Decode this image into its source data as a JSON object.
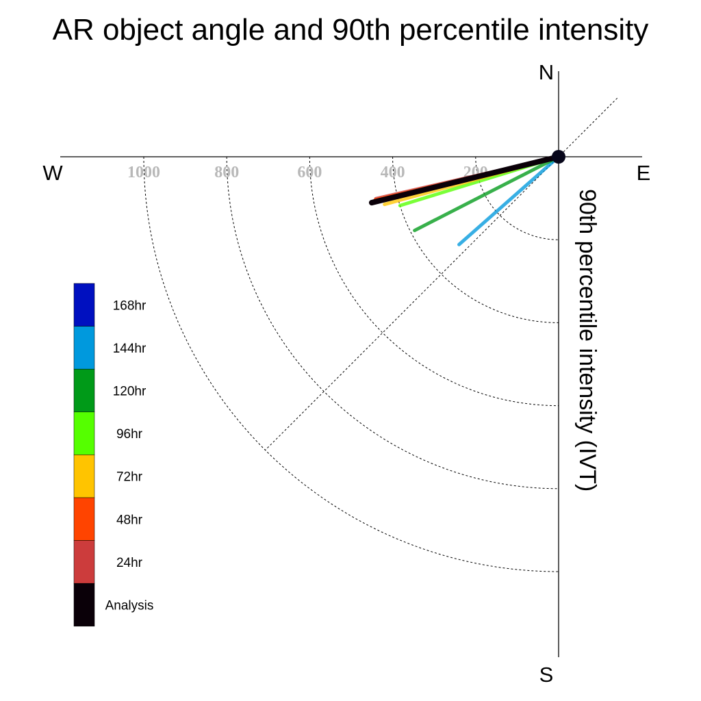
{
  "chart_data": {
    "type": "polar-vector",
    "title": "AR object angle and 90th percentile intensity",
    "ylabel": "90th percentile intensity (IVT)",
    "compass": {
      "north": "N",
      "south": "S",
      "east": "E",
      "west": "W"
    },
    "radial_ticks": [
      200,
      400,
      600,
      800,
      1000
    ],
    "radial_tick_labels": [
      "200",
      "400",
      "600",
      "800",
      "1000"
    ],
    "rlim": [
      0,
      1200
    ],
    "grid": true,
    "legend_position": "left",
    "legend": [
      {
        "label": "168hr",
        "color": "#0010c0"
      },
      {
        "label": "144hr",
        "color": "#0099dd"
      },
      {
        "label": "120hr",
        "color": "#009a18"
      },
      {
        "label": "96hr",
        "color": "#55ff00"
      },
      {
        "label": "72hr",
        "color": "#ffc400"
      },
      {
        "label": "48hr",
        "color": "#ff4400"
      },
      {
        "label": "24hr",
        "color": "#cc3c3c"
      },
      {
        "label": "Analysis",
        "color": "#0a0008"
      }
    ],
    "series": [
      {
        "name": "144hr",
        "angle_deg": 228.6,
        "intensity": 320,
        "color": "#0099dd"
      },
      {
        "name": "120hr",
        "angle_deg": 242.9,
        "intensity": 390,
        "color": "#009a18"
      },
      {
        "name": "96hr",
        "angle_deg": 252.9,
        "intensity": 400,
        "color": "#55ff00"
      },
      {
        "name": "72hr",
        "angle_deg": 254.7,
        "intensity": 435,
        "color": "#ffc400"
      },
      {
        "name": "24hr",
        "angle_deg": 257.1,
        "intensity": 452,
        "color": "#cc3c3c"
      },
      {
        "name": "48hr",
        "angle_deg": 256.8,
        "intensity": 454,
        "color": "#ff4400"
      },
      {
        "name": "Analysis",
        "angle_deg": 256.2,
        "intensity": 464,
        "color": "#0a0008"
      }
    ]
  }
}
